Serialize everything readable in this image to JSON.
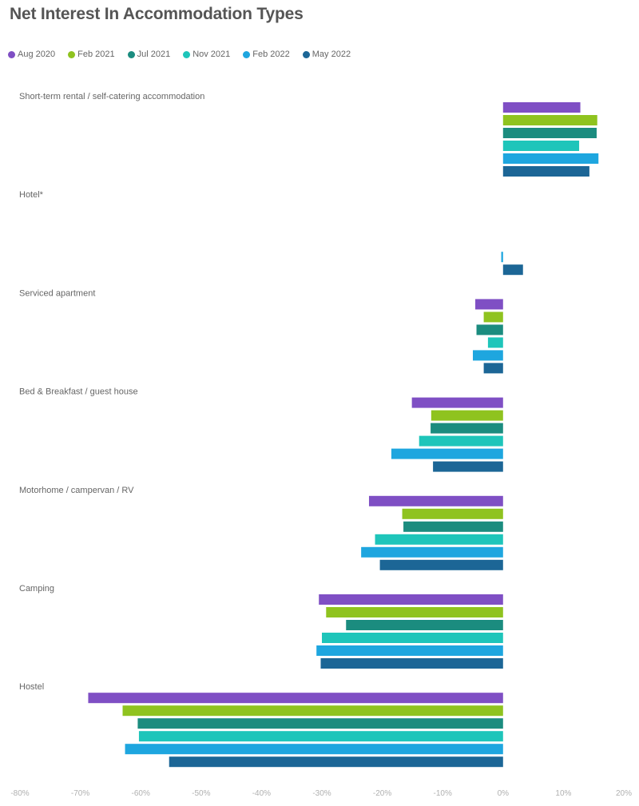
{
  "chart_data": {
    "type": "bar",
    "orientation": "horizontal",
    "title": "Net Interest In Accommodation Types",
    "xlabel": "",
    "ylabel": "",
    "xlim": [
      -80,
      20
    ],
    "x_ticks": [
      "-80%",
      "-70%",
      "-60%",
      "-50%",
      "-40%",
      "-30%",
      "-20%",
      "-10%",
      "0%",
      "10%",
      "20%"
    ],
    "x_tick_values": [
      -80,
      -70,
      -60,
      -50,
      -40,
      -30,
      -20,
      -10,
      0,
      10,
      20
    ],
    "grid": false,
    "legend_position": "top-left",
    "categories": [
      "Short-term rental / self-catering accommodation",
      "Hotel*",
      "Serviced apartment",
      "Bed & Breakfast / guest house",
      "Motorhome / campervan / RV",
      "Camping",
      "Hostel"
    ],
    "series": [
      {
        "name": "Aug 2020",
        "color": "#7f4fc4",
        "values": [
          12.8,
          null,
          -4.6,
          -15.1,
          -22.2,
          -30.5,
          -68.7
        ]
      },
      {
        "name": "Feb 2021",
        "color": "#8fc31f",
        "values": [
          15.6,
          null,
          -3.2,
          -11.9,
          -16.7,
          -29.3,
          -63.0
        ]
      },
      {
        "name": "Jul 2021",
        "color": "#1b8c7f",
        "values": [
          15.5,
          null,
          -4.4,
          -12.0,
          -16.5,
          -26.0,
          -60.5
        ]
      },
      {
        "name": "Nov 2021",
        "color": "#1ec5ba",
        "values": [
          12.6,
          null,
          -2.5,
          -13.9,
          -21.2,
          -30.0,
          -60.3
        ]
      },
      {
        "name": "Feb 2022",
        "color": "#1ea6df",
        "values": [
          15.8,
          -0.3,
          -5.0,
          -18.5,
          -23.5,
          -30.9,
          -62.6
        ]
      },
      {
        "name": "May 2022",
        "color": "#1c6696",
        "values": [
          14.3,
          3.3,
          -3.2,
          -11.6,
          -20.4,
          -30.2,
          -55.3
        ]
      }
    ]
  }
}
